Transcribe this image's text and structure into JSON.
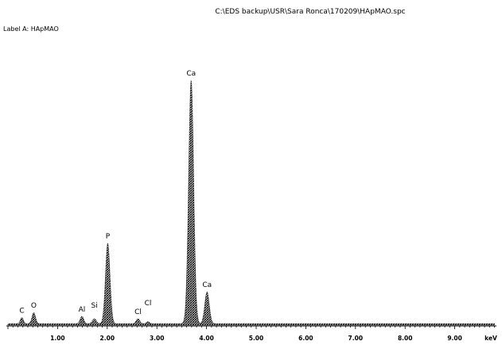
{
  "header": {
    "path": "C:\\EDS backup\\USR\\Sara Ronca\\170209\\HApMAO.spc",
    "label": "Label A: HApMAO"
  },
  "chart_data": {
    "type": "line",
    "title": "C:\\EDS backup\\USR\\Sara Ronca\\170209\\HApMAO.spc",
    "xlabel": "keV",
    "ylabel": "",
    "xlim": [
      0.0,
      9.8
    ],
    "ylim": [
      0,
      100
    ],
    "x_ticks": [
      1.0,
      2.0,
      3.0,
      4.0,
      5.0,
      6.0,
      7.0,
      8.0,
      9.0
    ],
    "x_tick_labels": [
      "1.00",
      "2.00",
      "3.00",
      "4.00",
      "5.00",
      "6.00",
      "7.00",
      "8.00",
      "9.00"
    ],
    "x_unit_label": "keV",
    "grid": false,
    "peaks": [
      {
        "label": "C",
        "energy": 0.28,
        "height": 2.5,
        "width": 0.03
      },
      {
        "label": "O",
        "energy": 0.52,
        "height": 4.5,
        "width": 0.035
      },
      {
        "label": "Al",
        "energy": 1.49,
        "height": 3.0,
        "width": 0.035
      },
      {
        "label": "Si",
        "energy": 1.74,
        "height": 2.0,
        "width": 0.04
      },
      {
        "label": "P",
        "energy": 2.01,
        "height": 33.0,
        "width": 0.045
      },
      {
        "label": "Cl",
        "energy": 2.62,
        "height": 2.0,
        "width": 0.035
      },
      {
        "label": "Cl",
        "energy": 2.82,
        "height": 0.8,
        "width": 0.03
      },
      {
        "label": "Ca",
        "energy": 3.69,
        "height": 100.0,
        "width": 0.05
      },
      {
        "label": "Ca",
        "energy": 4.01,
        "height": 13.0,
        "width": 0.045
      }
    ],
    "labels": [
      {
        "text": "C",
        "energy": 0.28,
        "height": 2.5
      },
      {
        "text": "O",
        "energy": 0.52,
        "height": 4.5
      },
      {
        "text": "Al",
        "energy": 1.49,
        "height": 3.0
      },
      {
        "text": "Si",
        "energy": 1.74,
        "height": 4.5
      },
      {
        "text": "P",
        "energy": 2.01,
        "height": 33.0
      },
      {
        "text": "Cl",
        "energy": 2.62,
        "height": 2.0
      },
      {
        "text": "Cl",
        "energy": 2.82,
        "height": 5.5
      },
      {
        "text": "Ca",
        "energy": 3.69,
        "height": 100.0
      },
      {
        "text": "Ca",
        "energy": 4.01,
        "height": 13.0
      }
    ],
    "background": 0.6
  }
}
